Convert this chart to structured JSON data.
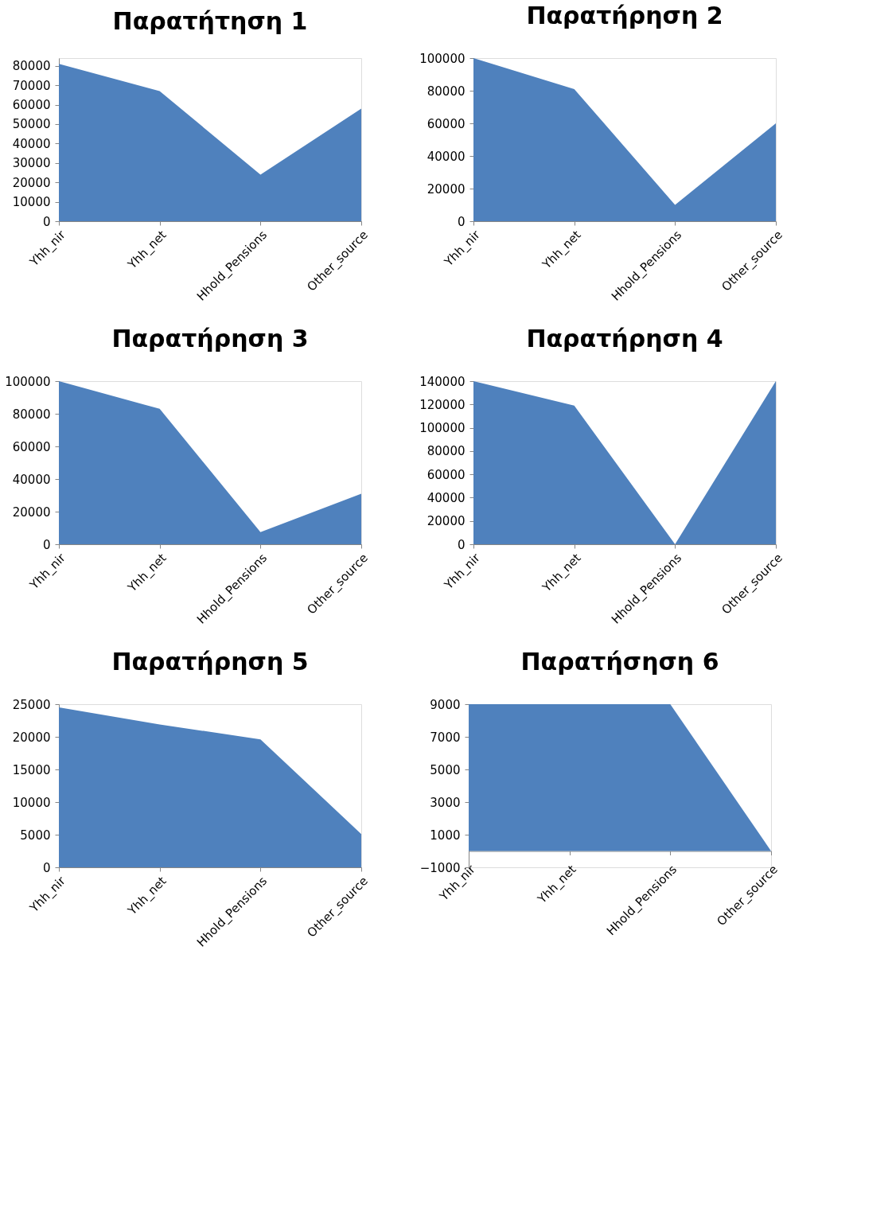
{
  "chart_data": [
    {
      "type": "area",
      "title": "Παρατήτηση 1",
      "categories": [
        "Yhh_nir",
        "Yhh_net",
        "Hhold_Pensions",
        "Other_source"
      ],
      "values": [
        81000,
        67000,
        24000,
        58000
      ],
      "color": "#4f81bd",
      "ylim": [
        0,
        84000
      ],
      "yticks": [
        0,
        10000,
        20000,
        30000,
        40000,
        50000,
        60000,
        70000,
        80000
      ],
      "grid": false
    },
    {
      "type": "area",
      "title": "Παρατήρηση 2",
      "categories": [
        "Yhh_nir",
        "Yhh_net",
        "Hhold_Pensions",
        "Other_source"
      ],
      "values": [
        100000,
        81000,
        10000,
        60000
      ],
      "color": "#4f81bd",
      "ylim": [
        0,
        100000
      ],
      "yticks": [
        0,
        20000,
        40000,
        60000,
        80000,
        100000
      ],
      "grid": false
    },
    {
      "type": "area",
      "title": "Παρατήρηση 3",
      "categories": [
        "Yhh_nir",
        "Yhh_net",
        "Hhold_Pensions",
        "Other_source"
      ],
      "values": [
        100000,
        83000,
        7500,
        31000
      ],
      "color": "#4f81bd",
      "ylim": [
        0,
        100000
      ],
      "yticks": [
        0,
        20000,
        40000,
        60000,
        80000,
        100000
      ],
      "grid": false
    },
    {
      "type": "area",
      "title": "Παρατήρηση 4",
      "categories": [
        "Yhh_nir",
        "Yhh_net",
        "Hhold_Pensions",
        "Other_source"
      ],
      "values": [
        140000,
        119000,
        0,
        140000
      ],
      "color": "#4f81bd",
      "ylim": [
        0,
        140000
      ],
      "yticks": [
        0,
        20000,
        40000,
        60000,
        80000,
        100000,
        120000,
        140000
      ],
      "grid": false
    },
    {
      "type": "area",
      "title": "Παρατήρηση 5",
      "categories": [
        "Yhh_nir",
        "Yhh_net",
        "Hhold_Pensions",
        "Other_source"
      ],
      "values": [
        24500,
        21900,
        19600,
        5100
      ],
      "color": "#4f81bd",
      "ylim": [
        0,
        25000
      ],
      "yticks": [
        0,
        5000,
        10000,
        15000,
        20000,
        25000
      ],
      "grid": false
    },
    {
      "type": "area",
      "title": "Παρατήσηση 6",
      "categories": [
        "Yhh_nir",
        "Yhh_net",
        "Hhold_Pensions",
        "Other_source"
      ],
      "values": [
        9000,
        9000,
        9000,
        0
      ],
      "color": "#4f81bd",
      "ylim": [
        -1000,
        9000
      ],
      "yticks": [
        -1000,
        1000,
        3000,
        5000,
        7000,
        9000
      ],
      "grid": false
    }
  ]
}
